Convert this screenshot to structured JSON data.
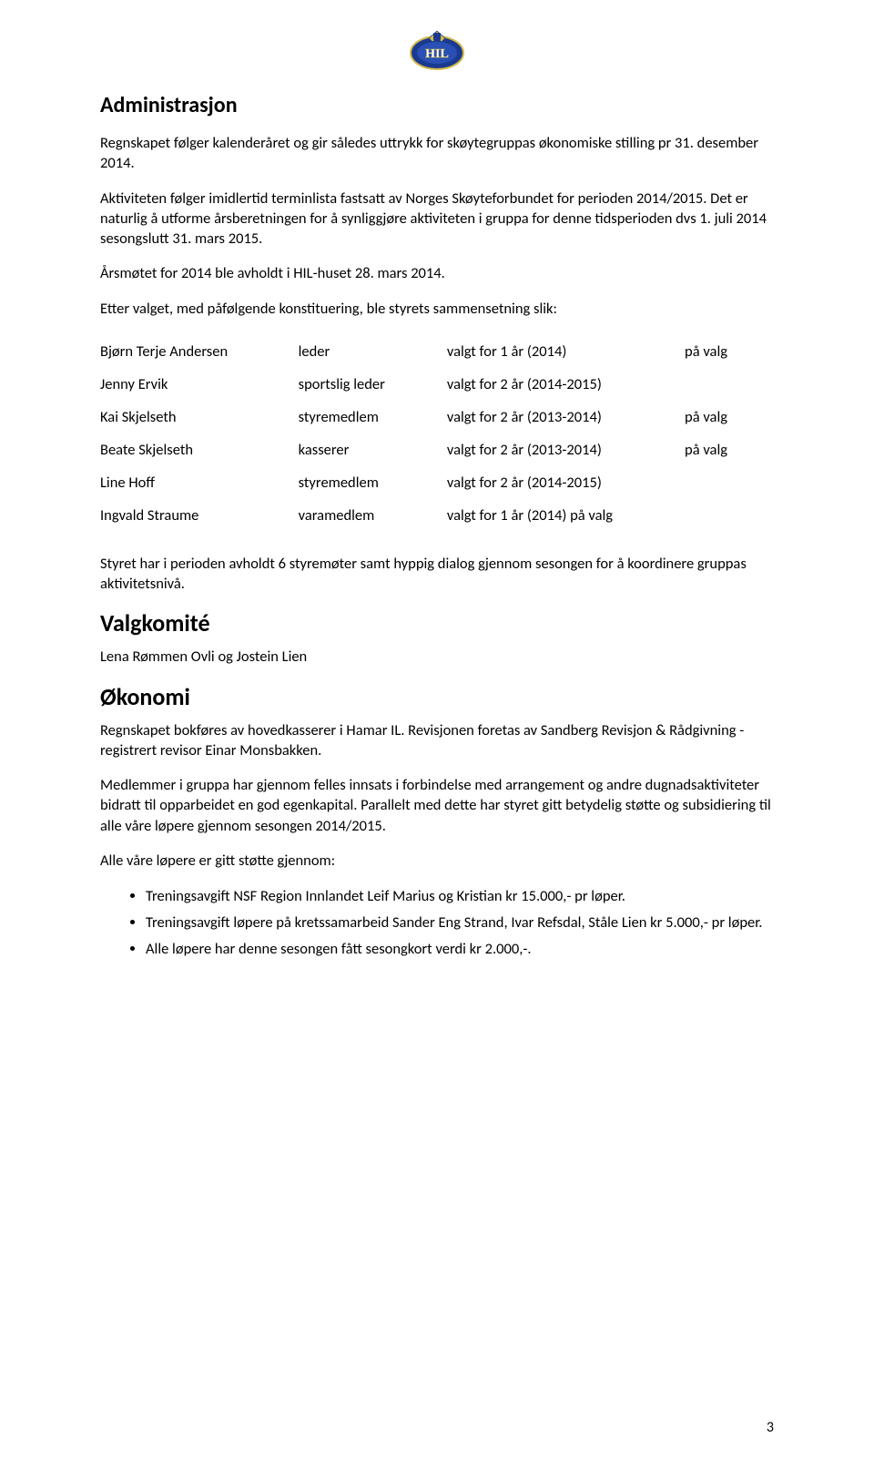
{
  "logo": {
    "label": "HIL"
  },
  "section1": {
    "title": "Administrasjon",
    "p1": "Regnskapet følger kalenderåret og gir således uttrykk for skøytegruppas økonomiske stilling pr 31. desember 2014.",
    "p2": "Aktiviteten følger imidlertid terminlista fastsatt av Norges Skøyteforbundet for perioden 2014/2015. Det er naturlig å utforme årsberetningen for å synliggjøre aktiviteten i gruppa for denne tidsperioden dvs 1. juli 2014 sesongslutt 31. mars 2015.",
    "p3": "Årsmøtet for 2014 ble avholdt i HIL-huset 28. mars 2014.",
    "p4": "Etter valget, med påfølgende konstituering, ble styrets sammensetning slik:"
  },
  "board": [
    {
      "name": "Bjørn Terje Andersen",
      "role": "leder",
      "term": "valgt for 1 år  (2014)",
      "status": "på valg"
    },
    {
      "name": "Jenny Ervik",
      "role": "sportslig leder",
      "term": "valgt for 2 år  (2014-2015)",
      "status": ""
    },
    {
      "name": "Kai Skjelseth",
      "role": "styremedlem",
      "term": "valgt for 2 år  (2013-2014)",
      "status": "på valg"
    },
    {
      "name": "Beate Skjelseth",
      "role": "kasserer",
      "term": "valgt for 2 år  (2013-2014)",
      "status": "på valg"
    },
    {
      "name": "Line Hoff",
      "role": "styremedlem",
      "term": "valgt for 2 år  (2014-2015)",
      "status": ""
    },
    {
      "name": "Ingvald Straume",
      "role": "varamedlem",
      "term": "valgt for 1 år  (2014) på valg",
      "status": ""
    }
  ],
  "p_after_table": "Styret har i perioden avholdt 6 styremøter samt hyppig dialog gjennom sesongen for å koordinere gruppas aktivitetsnivå.",
  "section2": {
    "title": "Valgkomité",
    "p1": "Lena Rømmen Ovli og Jostein Lien"
  },
  "section3": {
    "title": "Økonomi",
    "p1": "Regnskapet bokføres av hovedkasserer i Hamar IL. Revisjonen foretas av Sandberg Revisjon & Rådgivning - registrert revisor Einar Monsbakken.",
    "p2": "Medlemmer i gruppa har gjennom felles innsats i forbindelse med arrangement og andre dugnadsaktiviteter bidratt til opparbeidet en god egenkapital. Parallelt med dette har styret gitt betydelig støtte og subsidiering til alle våre løpere gjennom sesongen 2014/2015.",
    "p3": "Alle våre løpere er gitt støtte gjennom:",
    "bullets": [
      "Treningsavgift NSF Region Innlandet Leif Marius og Kristian kr 15.000,- pr løper.",
      "Treningsavgift løpere på kretssamarbeid Sander Eng Strand, Ivar Refsdal, Ståle Lien kr 5.000,- pr løper.",
      "Alle løpere har denne sesongen fått sesongkort verdi kr 2.000,-."
    ]
  },
  "page_number": "3"
}
